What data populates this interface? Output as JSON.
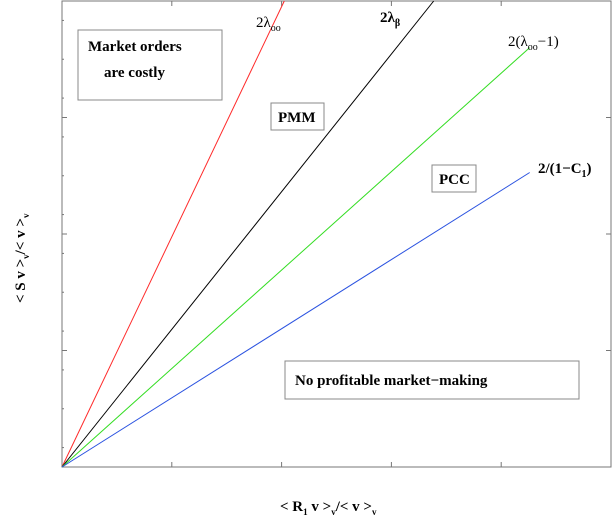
{
  "chart_data": {
    "type": "line",
    "title": "",
    "xlabel": {
      "pre": "< R",
      "sub1": "1",
      "mid": " v >",
      "sub2": "v",
      "post": "/< v >",
      "sub3": "v"
    },
    "ylabel": {
      "pre": "< S v >",
      "sub1": "v",
      "post": "/< v >",
      "sub2": "v"
    },
    "xlim": [
      0,
      1
    ],
    "ylim": [
      0,
      1
    ],
    "grid": false,
    "series": [
      {
        "id": "red",
        "color": "#ff2a2a",
        "x": [
          0,
          0.405
        ],
        "y": [
          0,
          1.0
        ],
        "label": {
          "pre": "2λ",
          "sub": "oo",
          "post": "",
          "bold": false
        }
      },
      {
        "id": "black",
        "color": "#000000",
        "x": [
          0,
          0.677
        ],
        "y": [
          0,
          1.0
        ],
        "label": {
          "pre": "2λ",
          "sub": "β",
          "post": "",
          "bold": true
        }
      },
      {
        "id": "green",
        "color": "#33dd22",
        "x": [
          0,
          0.852
        ],
        "y": [
          0,
          0.9
        ],
        "label": {
          "pre": "2(λ",
          "sub": "oo",
          "post": "−1)",
          "bold": false
        }
      },
      {
        "id": "blue",
        "color": "#2a52e0",
        "x": [
          0,
          0.852
        ],
        "y": [
          0,
          0.632
        ],
        "label": {
          "pre": "2/(1−C",
          "sub": "1",
          "post": ")",
          "bold": true
        }
      }
    ],
    "regions": [
      {
        "id": "costly",
        "lines": [
          "Market orders",
          "are costly"
        ]
      },
      {
        "id": "pmm",
        "lines": [
          "PMM"
        ]
      },
      {
        "id": "pcc",
        "lines": [
          "PCC"
        ]
      },
      {
        "id": "noprofit",
        "lines": [
          "No profitable market−making"
        ]
      }
    ]
  }
}
